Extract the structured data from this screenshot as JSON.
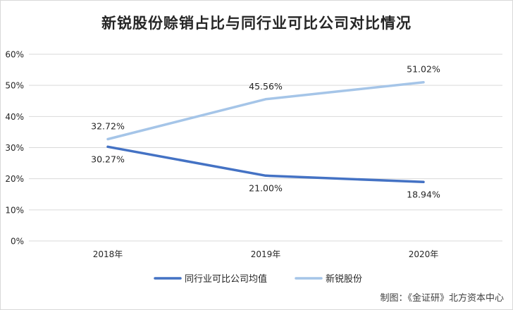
{
  "title": "新锐股份赊销占比与同行业可比公司对比情况",
  "caption": "制图：《金证研》北方资本中心",
  "colors": {
    "industry_avg": "#4472c4",
    "xinrui": "#a5c5e8",
    "grid": "#d9d9d9",
    "text": "#262626"
  },
  "chart_data": {
    "type": "line",
    "categories": [
      "2018年",
      "2019年",
      "2020年"
    ],
    "ylim": [
      0,
      60
    ],
    "y_ticks": [
      "0%",
      "10%",
      "20%",
      "30%",
      "40%",
      "50%",
      "60%"
    ],
    "grid": true,
    "legend_position": "bottom",
    "series": [
      {
        "name": "同行业可比公司均值",
        "values": [
          30.27,
          21.0,
          18.94
        ],
        "labels": [
          "30.27%",
          "21.00%",
          "18.94%"
        ],
        "label_position": "below"
      },
      {
        "name": "新锐股份",
        "values": [
          32.72,
          45.56,
          51.02
        ],
        "labels": [
          "32.72%",
          "45.56%",
          "51.02%"
        ],
        "label_position": "above"
      }
    ]
  }
}
